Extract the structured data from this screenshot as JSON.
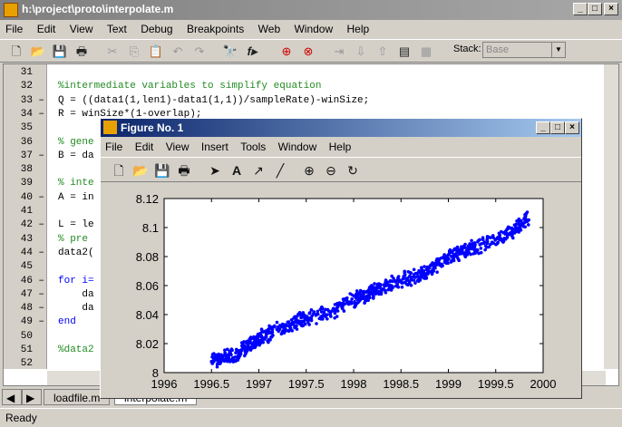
{
  "editor_window": {
    "title": "h:\\project\\proto\\interpolate.m",
    "menu": [
      "File",
      "Edit",
      "View",
      "Text",
      "Debug",
      "Breakpoints",
      "Web",
      "Window",
      "Help"
    ],
    "stack_label": "Stack:",
    "stack_value": "Base",
    "status": "Ready",
    "tabs": [
      "loadfile.m",
      "interpolate.m"
    ],
    "lines": [
      {
        "n": "31",
        "dash": "",
        "code": ""
      },
      {
        "n": "32",
        "dash": "",
        "code": "%intermediate variables to simplify equation",
        "type": "cm"
      },
      {
        "n": "33",
        "dash": "–",
        "code": "Q = ((data1(1,len1)-data1(1,1))/sampleRate)-winSize;"
      },
      {
        "n": "34",
        "dash": "–",
        "code": "R = winSize*(1-overlap);"
      },
      {
        "n": "35",
        "dash": "",
        "code": ""
      },
      {
        "n": "36",
        "dash": "",
        "code": "% gene",
        "type": "cm"
      },
      {
        "n": "37",
        "dash": "–",
        "code": "B = da"
      },
      {
        "n": "38",
        "dash": "",
        "code": ""
      },
      {
        "n": "39",
        "dash": "",
        "code": "% inte",
        "type": "cm"
      },
      {
        "n": "40",
        "dash": "–",
        "code": "A = in"
      },
      {
        "n": "41",
        "dash": "",
        "code": ""
      },
      {
        "n": "42",
        "dash": "–",
        "code": "L = le"
      },
      {
        "n": "43",
        "dash": "",
        "code": "% pre",
        "type": "cm"
      },
      {
        "n": "44",
        "dash": "–",
        "code": "data2("
      },
      {
        "n": "45",
        "dash": "",
        "code": ""
      },
      {
        "n": "46",
        "dash": "–",
        "code": "for i=",
        "type": "kw"
      },
      {
        "n": "47",
        "dash": "–",
        "code": "    da"
      },
      {
        "n": "48",
        "dash": "–",
        "code": "    da"
      },
      {
        "n": "49",
        "dash": "–",
        "code": "end",
        "type": "kw"
      },
      {
        "n": "50",
        "dash": "",
        "code": ""
      },
      {
        "n": "51",
        "dash": "",
        "code": "%data2",
        "type": "cm"
      },
      {
        "n": "52",
        "dash": "",
        "code": ""
      }
    ]
  },
  "figure_window": {
    "title": "Figure No. 1",
    "menu": [
      "File",
      "Edit",
      "View",
      "Insert",
      "Tools",
      "Window",
      "Help"
    ]
  },
  "chart_data": {
    "type": "scatter",
    "xlim": [
      1996,
      2000
    ],
    "ylim": [
      8,
      8.12
    ],
    "xticks": [
      "1996",
      "1996.5",
      "1997",
      "1997.5",
      "1998",
      "1998.5",
      "1999",
      "1999.5",
      "2000"
    ],
    "yticks": [
      "8",
      "8.02",
      "8.04",
      "8.06",
      "8.08",
      "8.1",
      "8.12"
    ],
    "series_color": "#0000ff",
    "x_range": [
      1996.5,
      1999.85
    ],
    "trend": [
      [
        1996.5,
        8.008
      ],
      [
        1996.75,
        8.012
      ],
      [
        1997.0,
        8.024
      ],
      [
        1997.25,
        8.031
      ],
      [
        1997.5,
        8.038
      ],
      [
        1997.75,
        8.041
      ],
      [
        1998.0,
        8.05
      ],
      [
        1998.25,
        8.057
      ],
      [
        1998.5,
        8.064
      ],
      [
        1998.75,
        8.068
      ],
      [
        1999.0,
        8.08
      ],
      [
        1999.25,
        8.086
      ],
      [
        1999.5,
        8.092
      ],
      [
        1999.7,
        8.098
      ],
      [
        1999.85,
        8.108
      ]
    ]
  }
}
